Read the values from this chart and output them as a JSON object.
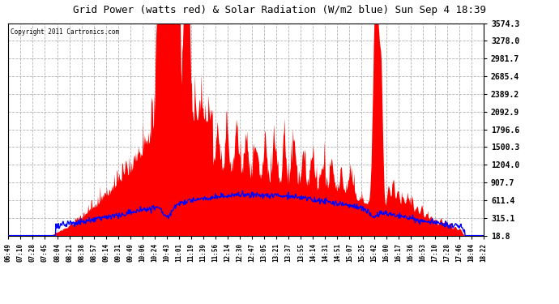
{
  "title": "Grid Power (watts red) & Solar Radiation (W/m2 blue) Sun Sep 4 18:39",
  "copyright": "Copyright 2011 Cartronics.com",
  "background_color": "#ffffff",
  "plot_bg_color": "#ffffff",
  "grid_color": "#aaaaaa",
  "title_color": "#000000",
  "ytick_color": "#000000",
  "xtick_color": "#000000",
  "ymin": 18.8,
  "ymax": 3574.3,
  "yticks": [
    18.8,
    315.1,
    611.4,
    907.7,
    1204.0,
    1500.3,
    1796.6,
    2092.9,
    2389.2,
    2685.4,
    2981.7,
    3278.0,
    3574.3
  ],
  "xtick_labels": [
    "06:49",
    "07:10",
    "07:28",
    "07:45",
    "08:04",
    "08:21",
    "08:38",
    "08:57",
    "09:14",
    "09:31",
    "09:49",
    "10:06",
    "10:24",
    "10:43",
    "11:01",
    "11:19",
    "11:39",
    "11:56",
    "12:14",
    "12:30",
    "12:47",
    "13:05",
    "13:21",
    "13:37",
    "13:55",
    "14:14",
    "14:31",
    "14:51",
    "15:07",
    "15:25",
    "15:42",
    "16:00",
    "16:17",
    "16:36",
    "16:53",
    "17:10",
    "17:28",
    "17:46",
    "18:04",
    "18:22"
  ],
  "red_color": "#ff0000",
  "blue_color": "#0000ff"
}
